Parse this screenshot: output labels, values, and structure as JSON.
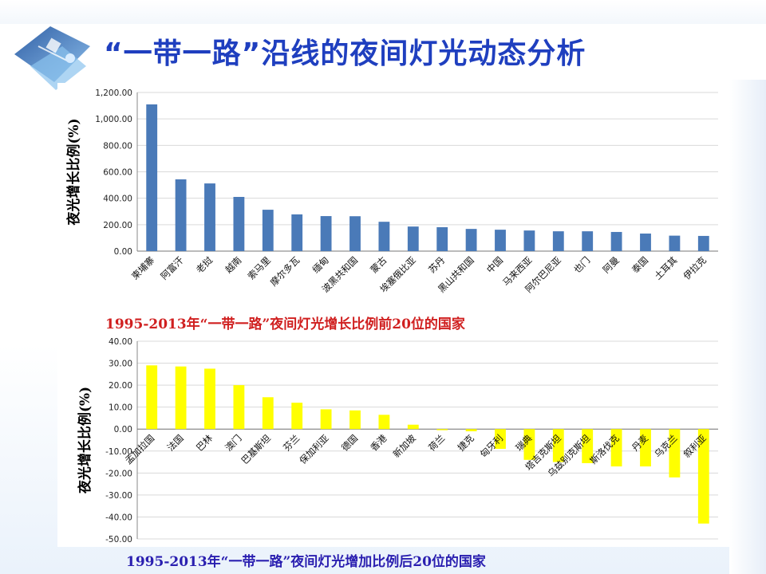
{
  "title": "“一带一路”沿线的夜间灯光动态分析",
  "logo_icon": "satellite-globe-icon",
  "colors": {
    "title": "#1f3fbf",
    "bar_top": "#4a7ab8",
    "bar_bottom": "#ffff00",
    "caption_top": "#d02020",
    "caption_bottom": "#2a1fb0"
  },
  "chart_data": [
    {
      "type": "bar",
      "title": "",
      "ylabel": "夜光增长比例(%)",
      "ylim": [
        0,
        1200
      ],
      "yticks": [
        0,
        200,
        400,
        600,
        800,
        1000,
        1200
      ],
      "ytick_labels": [
        "0.00",
        "200.00",
        "400.00",
        "600.00",
        "800.00",
        "1,000.00",
        "1,200.00"
      ],
      "categories": [
        "柬埔寨",
        "阿富汗",
        "老挝",
        "越南",
        "索马里",
        "摩尔多瓦",
        "缅甸",
        "波黑共和国",
        "蒙古",
        "埃塞俄比亚",
        "苏丹",
        "黑山共和国",
        "中国",
        "马来西亚",
        "阿尔巴尼亚",
        "也门",
        "阿曼",
        "泰国",
        "土耳其",
        "伊拉克"
      ],
      "values": [
        1110,
        543,
        512,
        410,
        313,
        278,
        265,
        264,
        222,
        186,
        181,
        168,
        162,
        156,
        150,
        150,
        145,
        133,
        117,
        115
      ],
      "caption": "1995-2013年“一带一路”夜间灯光增长比例前20位的国家"
    },
    {
      "type": "bar",
      "title": "",
      "ylabel": "夜光增长比例(%)",
      "ylim": [
        -50,
        40
      ],
      "yticks": [
        -50,
        -40,
        -30,
        -20,
        -10,
        0,
        10,
        20,
        30,
        40
      ],
      "ytick_labels": [
        "-50.00",
        "-40.00",
        "-30.00",
        "-20.00",
        "-10.00",
        "0.00",
        "10.00",
        "20.00",
        "30.00",
        "40.00"
      ],
      "categories": [
        "孟加拉国",
        "法国",
        "巴林",
        "澳门",
        "巴基斯坦",
        "芬兰",
        "保加利亚",
        "德国",
        "香港",
        "新加坡",
        "荷兰",
        "捷克",
        "匈牙利",
        "瑞典",
        "塔吉克斯坦",
        "乌兹别克斯坦",
        "斯洛伐克",
        "丹麦",
        "乌克兰",
        "叙利亚"
      ],
      "values": [
        29,
        28.5,
        27.5,
        20,
        14.5,
        12,
        9,
        8.5,
        6.5,
        2,
        -0.5,
        -1,
        -9,
        -14,
        -15,
        -15.5,
        -17,
        -17,
        -22,
        -43
      ],
      "caption": "1995-2013年“一带一路”夜间灯光增加比例后20位的国家"
    }
  ]
}
